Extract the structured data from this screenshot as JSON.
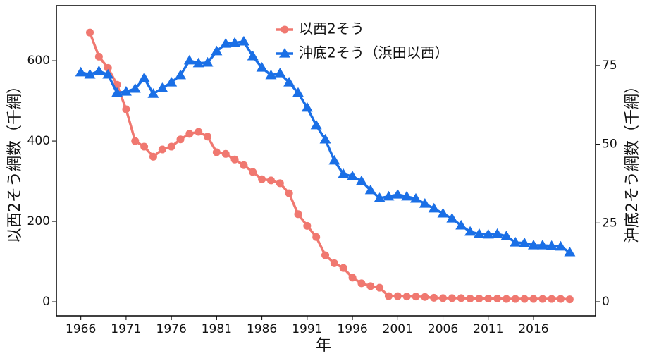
{
  "chart_data": {
    "type": "line",
    "x_label": "年",
    "y_label": "以西2そう網数（千網）",
    "y2_label": "沖底2そう網数（千網）",
    "x": [
      1966,
      1967,
      1968,
      1969,
      1970,
      1971,
      1972,
      1973,
      1974,
      1975,
      1976,
      1977,
      1978,
      1979,
      1980,
      1981,
      1982,
      1983,
      1984,
      1985,
      1986,
      1987,
      1988,
      1989,
      1990,
      1991,
      1992,
      1993,
      1994,
      1995,
      1996,
      1997,
      1998,
      1999,
      2000,
      2001,
      2002,
      2003,
      2004,
      2005,
      2006,
      2007,
      2008,
      2009,
      2010,
      2011,
      2012,
      2013,
      2014,
      2015,
      2016,
      2017,
      2018,
      2019,
      2020
    ],
    "xlim": [
      1963.3,
      2022.85
    ],
    "xticks": [
      1966,
      1971,
      1976,
      1981,
      1986,
      1991,
      1996,
      2001,
      2006,
      2011,
      2016
    ],
    "ylim": [
      -35,
      737
    ],
    "yticks": [
      0,
      200,
      400,
      600
    ],
    "y2lim": [
      -4.48,
      94.0
    ],
    "y2ticks": [
      0,
      25,
      50,
      75
    ],
    "legend": "top",
    "series": [
      {
        "name": "以西2そう",
        "color": "#f07870",
        "marker": "circle",
        "values": [
          null,
          670,
          610,
          582,
          540,
          479,
          400,
          386,
          361,
          379,
          386,
          404,
          418,
          423,
          411,
          372,
          368,
          354,
          340,
          323,
          305,
          302,
          295,
          270,
          218,
          189,
          161,
          116,
          96,
          84,
          60,
          46,
          39,
          35,
          14,
          14,
          13,
          13,
          12,
          10,
          9,
          9,
          9,
          8,
          8,
          8,
          8,
          7,
          7,
          7,
          7,
          7,
          7,
          7,
          6
        ]
      },
      {
        "name": "沖底2そう（浜田以西）",
        "color": "#1a6fe6",
        "marker": "triangle",
        "axis": "y2",
        "values": [
          72.8,
          72.1,
          73.2,
          72.1,
          66.3,
          66.7,
          67.6,
          71.0,
          66.0,
          67.8,
          69.6,
          71.9,
          76.6,
          75.7,
          75.9,
          79.5,
          81.9,
          82.2,
          82.6,
          77.9,
          74.3,
          71.9,
          72.5,
          69.6,
          66.3,
          61.6,
          56.0,
          51.5,
          44.8,
          40.5,
          39.8,
          38.3,
          35.4,
          32.9,
          33.4,
          34.0,
          33.4,
          32.7,
          31.1,
          29.6,
          28.0,
          26.4,
          24.2,
          22.2,
          21.5,
          21.3,
          21.5,
          20.8,
          18.8,
          18.6,
          17.9,
          17.9,
          17.7,
          17.5,
          15.7
        ]
      }
    ]
  }
}
